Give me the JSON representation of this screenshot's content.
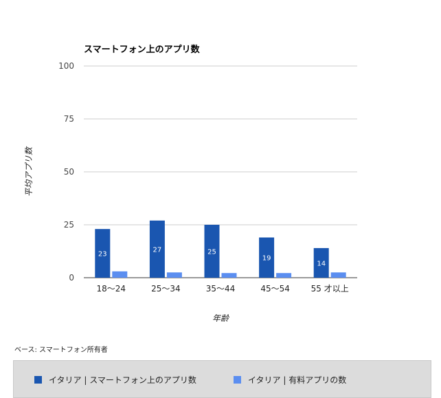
{
  "chart_data": {
    "type": "bar",
    "title": "スマートフォン上のアプリ数",
    "xlabel": "年齢",
    "ylabel": "平均アプリ数",
    "categories": [
      "18〜24",
      "25〜34",
      "35〜44",
      "45〜54",
      "55 才以上"
    ],
    "series": [
      {
        "name": "イタリア | スマートフォン上のアプリ数",
        "values": [
          23,
          27,
          25,
          19,
          14
        ],
        "color": "#1a56b0",
        "labels": [
          "23",
          "27",
          "25",
          "19",
          "14"
        ]
      },
      {
        "name": "イタリア | 有料アプリの数",
        "values": [
          3,
          2.5,
          2.2,
          2.2,
          2.5
        ],
        "color": "#5b8ef0"
      }
    ],
    "y_ticks": [
      "0",
      "25",
      "50",
      "75",
      "100"
    ],
    "ylim": [
      0,
      100
    ],
    "grid": true,
    "legend_position": "bottom"
  },
  "footnote": "ベース: スマートフォン所有者"
}
